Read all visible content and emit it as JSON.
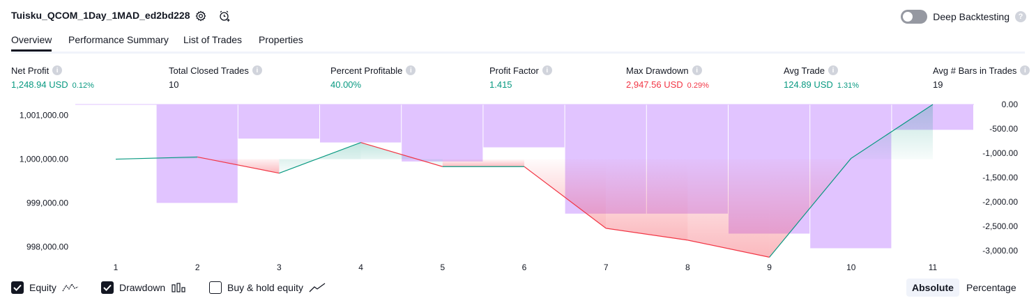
{
  "header": {
    "title": "Tuisku_QCOM_1Day_1MAD_ed2bd228",
    "settings_icon": "gear-icon",
    "alert_icon": "alarm-clock-plus-icon",
    "deep_backtesting_label": "Deep Backtesting",
    "deep_backtesting_on": false,
    "help_glyph": "?"
  },
  "tabs": [
    {
      "label": "Overview",
      "active": true
    },
    {
      "label": "Performance Summary",
      "active": false
    },
    {
      "label": "List of Trades",
      "active": false
    },
    {
      "label": "Properties",
      "active": false
    }
  ],
  "metrics": [
    {
      "label": "Net Profit",
      "value": "1,248.94 USD",
      "pct": "0.12%",
      "tone": "pos"
    },
    {
      "label": "Total Closed Trades",
      "value": "10",
      "pct": "",
      "tone": "neu"
    },
    {
      "label": "Percent Profitable",
      "value": "40.00%",
      "pct": "",
      "tone": "pos"
    },
    {
      "label": "Profit Factor",
      "value": "1.415",
      "pct": "",
      "tone": "pos"
    },
    {
      "label": "Max Drawdown",
      "value": "2,947.56 USD",
      "pct": "0.29%",
      "tone": "neg"
    },
    {
      "label": "Avg Trade",
      "value": "124.89 USD",
      "pct": "1.31%",
      "tone": "pos"
    },
    {
      "label": "Avg # Bars in Trades",
      "value": "19",
      "pct": "",
      "tone": "neu"
    }
  ],
  "info_glyph": "i",
  "chart_data": {
    "type": "line",
    "x": [
      1,
      2,
      3,
      4,
      5,
      6,
      7,
      8,
      9,
      10,
      11
    ],
    "series": [
      {
        "name": "Equity",
        "axis": "left",
        "values": [
          1000000.0,
          1000050.0,
          999680.0,
          1000380.0,
          999830.0,
          999830.0,
          998420.0,
          998150.0,
          997760.0,
          1000020.0,
          1001250.0
        ]
      },
      {
        "name": "Drawdown",
        "axis": "right",
        "kind": "bar",
        "values": [
          0.0,
          -2020.0,
          -700.0,
          -780.0,
          -1170.0,
          -880.0,
          -2240.0,
          -2240.0,
          -2650.0,
          -2950.0,
          -520.0
        ]
      }
    ],
    "y_left": {
      "ticks": [
        "1,001,000.00",
        "1,000,000.00",
        "999,000.00",
        "998,000.00"
      ],
      "tick_values": [
        1001000,
        1000000,
        999000,
        998000
      ],
      "range": [
        997750,
        1001250
      ]
    },
    "y_right": {
      "ticks": [
        "0.00",
        "-500.00",
        "-1,000.00",
        "-1,500.00",
        "-2,000.00",
        "-2,500.00",
        "-3,000.00"
      ],
      "tick_values": [
        0,
        -500,
        -1000,
        -1500,
        -2000,
        -2500,
        -3000
      ],
      "range": [
        -3000,
        0
      ]
    },
    "x_ticks": [
      "1",
      "2",
      "3",
      "4",
      "5",
      "6",
      "7",
      "8",
      "9",
      "10",
      "11"
    ],
    "colors": {
      "up": "#089981",
      "down": "#f23645",
      "drawdown_bar": "#e1c4ff",
      "up_fill": "#d4f0e8",
      "down_fill": "#f9b8c1"
    }
  },
  "legend": [
    {
      "label": "Equity",
      "checked": true,
      "icon": "equity-line-icon"
    },
    {
      "label": "Drawdown",
      "checked": true,
      "icon": "drawdown-bars-icon"
    },
    {
      "label": "Buy & hold equity",
      "checked": false,
      "icon": "buy-hold-line-icon"
    }
  ],
  "view_mode": {
    "options": [
      "Absolute",
      "Percentage"
    ],
    "selected": "Absolute"
  }
}
